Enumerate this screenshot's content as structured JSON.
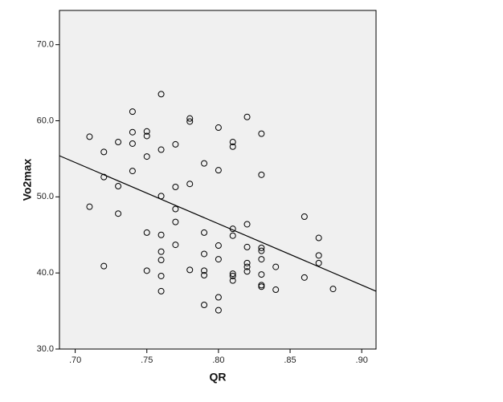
{
  "chart_data": {
    "type": "scatter",
    "x_label": "QR",
    "y_label": "Vo2max",
    "x": [
      0.71,
      0.71,
      0.72,
      0.72,
      0.72,
      0.73,
      0.73,
      0.73,
      0.74,
      0.74,
      0.74,
      0.74,
      0.75,
      0.75,
      0.75,
      0.75,
      0.75,
      0.76,
      0.76,
      0.76,
      0.76,
      0.76,
      0.76,
      0.76,
      0.76,
      0.77,
      0.77,
      0.77,
      0.77,
      0.77,
      0.78,
      0.78,
      0.78,
      0.78,
      0.79,
      0.79,
      0.79,
      0.79,
      0.79,
      0.79,
      0.8,
      0.8,
      0.8,
      0.8,
      0.8,
      0.8,
      0.81,
      0.81,
      0.81,
      0.81,
      0.81,
      0.81,
      0.81,
      0.82,
      0.82,
      0.82,
      0.82,
      0.82,
      0.82,
      0.83,
      0.83,
      0.83,
      0.83,
      0.83,
      0.83,
      0.83,
      0.83,
      0.84,
      0.84,
      0.86,
      0.86,
      0.87,
      0.87,
      0.87,
      0.88
    ],
    "values": [
      57.9,
      48.7,
      55.9,
      52.6,
      40.9,
      57.2,
      51.4,
      47.8,
      61.2,
      58.5,
      57.0,
      53.4,
      58.6,
      58.0,
      55.3,
      45.3,
      40.3,
      63.5,
      56.2,
      50.1,
      45.0,
      42.8,
      41.7,
      39.6,
      37.6,
      56.9,
      51.3,
      48.4,
      46.7,
      43.7,
      60.3,
      59.9,
      51.7,
      40.4,
      54.4,
      45.3,
      42.5,
      40.3,
      39.7,
      35.8,
      59.1,
      53.5,
      43.6,
      41.8,
      36.8,
      35.1,
      57.2,
      56.6,
      45.8,
      44.9,
      39.9,
      39.6,
      39.0,
      60.5,
      46.4,
      43.4,
      41.3,
      40.8,
      40.2,
      58.3,
      52.9,
      43.3,
      42.9,
      41.8,
      39.8,
      38.4,
      38.2,
      40.8,
      37.8,
      47.4,
      39.4,
      44.6,
      42.3,
      41.3,
      37.9
    ],
    "color": "#000000",
    "fit_line": {
      "x": [
        0.689,
        0.91
      ],
      "values": [
        55.4,
        37.6
      ],
      "color": "#000000"
    },
    "xlim": [
      0.689,
      0.91
    ],
    "ylim": [
      30,
      74.5
    ],
    "xticks": [
      {
        "value": 0.7,
        "label": ".70"
      },
      {
        "value": 0.75,
        "label": ".75"
      },
      {
        "value": 0.8,
        "label": ".80"
      },
      {
        "value": 0.85,
        "label": ".85"
      },
      {
        "value": 0.9,
        "label": ".90"
      }
    ],
    "yticks": [
      {
        "value": 30,
        "label": "30.0"
      },
      {
        "value": 40,
        "label": "40.0"
      },
      {
        "value": 50,
        "label": "50.0"
      },
      {
        "value": 60,
        "label": "60.0"
      },
      {
        "value": 70,
        "label": "70.0"
      }
    ],
    "grid": false,
    "background": "#f0f0f0"
  }
}
